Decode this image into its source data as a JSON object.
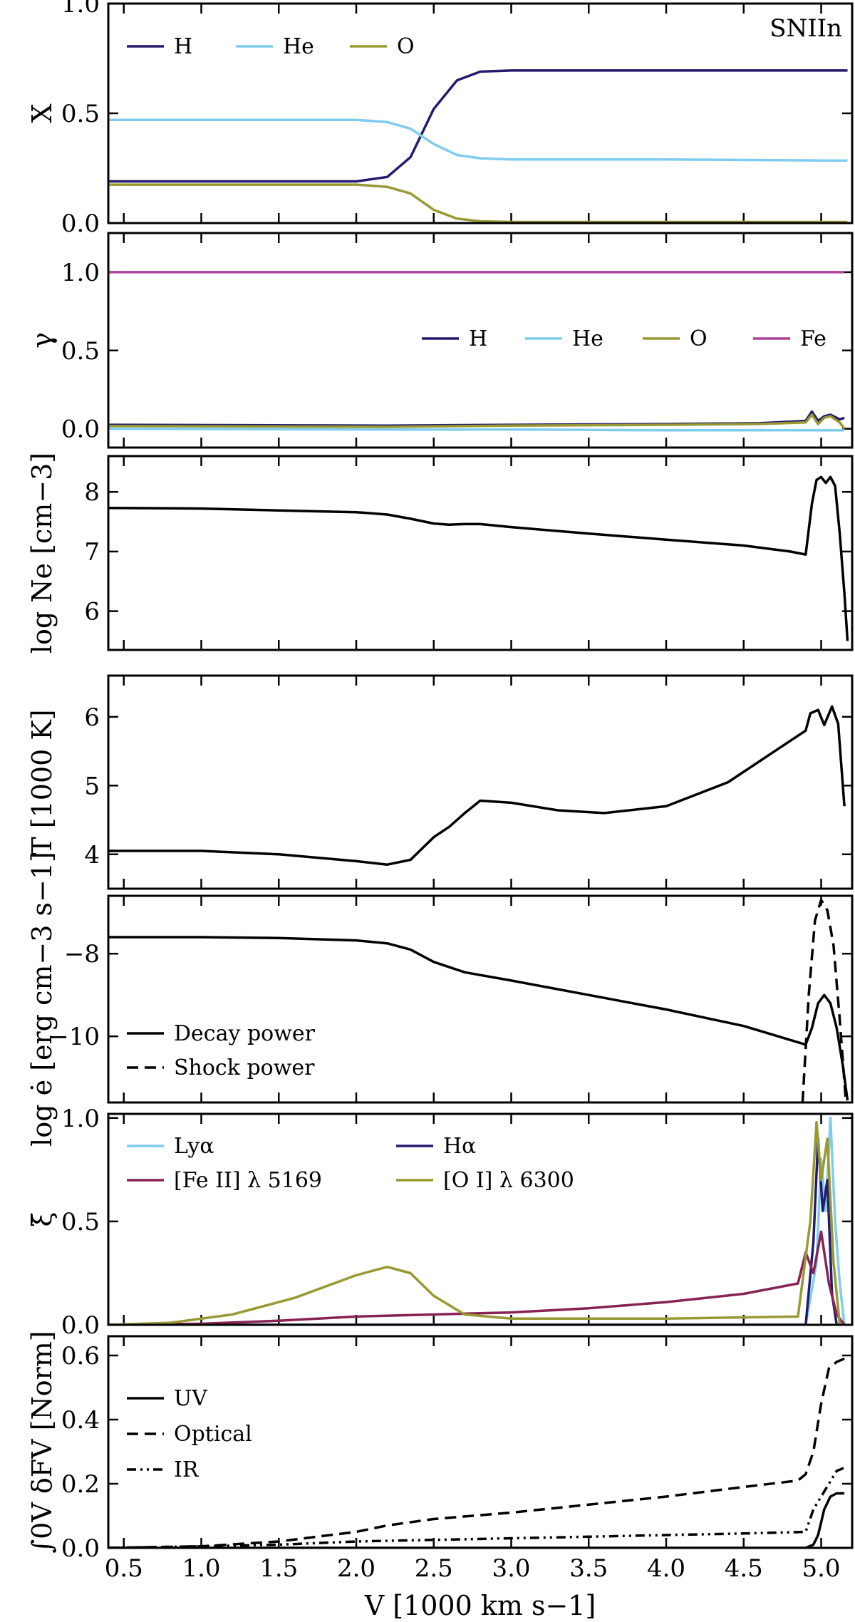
{
  "colors": {
    "H": "#231c6e",
    "He": "#80ccee",
    "O": "#999933",
    "Fe": "#aa4499",
    "FeII": "#882255",
    "black": "#000000"
  },
  "chart_data": [
    {
      "type": "line",
      "ylabel": "X",
      "annotation": "SNIIn",
      "xlim": [
        0.4,
        5.2
      ],
      "ylim": [
        0,
        1
      ],
      "yticks": [
        "0.0",
        "0.5",
        "1.0"
      ],
      "legend": "top-left",
      "series": [
        {
          "name": "H",
          "color": "H",
          "dash": "solid",
          "x": [
            0.4,
            1.0,
            1.5,
            2.0,
            2.2,
            2.35,
            2.5,
            2.65,
            2.8,
            3.0,
            4.0,
            5.0,
            5.17
          ],
          "y": [
            0.19,
            0.19,
            0.19,
            0.19,
            0.21,
            0.3,
            0.52,
            0.65,
            0.69,
            0.695,
            0.695,
            0.695,
            0.695
          ]
        },
        {
          "name": "He",
          "color": "He",
          "dash": "solid",
          "x": [
            0.4,
            1.0,
            1.5,
            2.0,
            2.2,
            2.35,
            2.5,
            2.65,
            2.8,
            3.0,
            4.0,
            5.0,
            5.17
          ],
          "y": [
            0.47,
            0.47,
            0.47,
            0.47,
            0.46,
            0.43,
            0.36,
            0.31,
            0.295,
            0.29,
            0.29,
            0.285,
            0.285
          ]
        },
        {
          "name": "O",
          "color": "O",
          "dash": "solid",
          "x": [
            0.4,
            1.0,
            1.5,
            2.0,
            2.2,
            2.35,
            2.5,
            2.65,
            2.8,
            3.0,
            4.0,
            5.0,
            5.17
          ],
          "y": [
            0.175,
            0.175,
            0.175,
            0.175,
            0.165,
            0.135,
            0.06,
            0.02,
            0.008,
            0.005,
            0.005,
            0.005,
            0.005
          ]
        }
      ]
    },
    {
      "type": "line",
      "ylabel": "γ",
      "xlim": [
        0.4,
        5.2
      ],
      "ylim": [
        -0.12,
        1.25
      ],
      "yticks": [
        "0.0",
        "0.5",
        "1.0"
      ],
      "legend": "center-right",
      "series": [
        {
          "name": "H",
          "color": "H",
          "dash": "solid",
          "x": [
            0.4,
            2.2,
            3.0,
            4.0,
            4.6,
            4.9,
            4.94,
            4.98,
            5.02,
            5.06,
            5.12,
            5.15
          ],
          "y": [
            0.025,
            0.02,
            0.025,
            0.03,
            0.035,
            0.05,
            0.11,
            0.05,
            0.08,
            0.09,
            0.06,
            0.07
          ]
        },
        {
          "name": "He",
          "color": "He",
          "dash": "solid",
          "x": [
            0.4,
            2.2,
            3.0,
            4.0,
            5.0,
            5.15
          ],
          "y": [
            0.0,
            -0.005,
            -0.005,
            -0.01,
            -0.01,
            -0.01
          ]
        },
        {
          "name": "O",
          "color": "O",
          "dash": "solid",
          "x": [
            0.4,
            2.2,
            3.0,
            4.0,
            4.6,
            4.9,
            4.94,
            4.98,
            5.02,
            5.06,
            5.12,
            5.15
          ],
          "y": [
            0.018,
            0.012,
            0.02,
            0.025,
            0.03,
            0.04,
            0.09,
            0.03,
            0.07,
            0.08,
            0.04,
            0.0
          ]
        },
        {
          "name": "Fe",
          "color": "Fe",
          "dash": "solid",
          "x": [
            0.4,
            2.0,
            4.0,
            5.15
          ],
          "y": [
            1.0,
            1.0,
            1.0,
            1.0
          ]
        }
      ]
    },
    {
      "type": "line",
      "ylabel": "log Ne [cm−3]",
      "xlim": [
        0.4,
        5.2
      ],
      "ylim": [
        5.35,
        8.6
      ],
      "yticks": [
        "6",
        "7",
        "8"
      ],
      "series": [
        {
          "name": "",
          "color": "black",
          "dash": "solid",
          "x": [
            0.4,
            1.0,
            1.5,
            2.0,
            2.2,
            2.35,
            2.5,
            2.6,
            2.7,
            2.8,
            3.0,
            3.5,
            4.0,
            4.5,
            4.8,
            4.9,
            4.94,
            4.97,
            5.0,
            5.03,
            5.06,
            5.09,
            5.12,
            5.15,
            5.17
          ],
          "y": [
            7.73,
            7.72,
            7.69,
            7.66,
            7.62,
            7.55,
            7.47,
            7.45,
            7.46,
            7.46,
            7.41,
            7.3,
            7.2,
            7.1,
            7.0,
            6.95,
            7.8,
            8.2,
            8.25,
            8.15,
            8.25,
            8.1,
            7.3,
            6.3,
            5.5
          ]
        }
      ]
    },
    {
      "type": "line",
      "ylabel": "T [1000 K]",
      "xlim": [
        0.4,
        5.2
      ],
      "ylim": [
        3.5,
        6.6
      ],
      "yticks": [
        "4",
        "5",
        "6"
      ],
      "series": [
        {
          "name": "",
          "color": "black",
          "dash": "solid",
          "x": [
            0.4,
            1.0,
            1.5,
            2.0,
            2.2,
            2.35,
            2.5,
            2.6,
            2.7,
            2.8,
            3.0,
            3.3,
            3.6,
            4.0,
            4.4,
            4.7,
            4.9,
            4.93,
            4.98,
            5.02,
            5.07,
            5.11,
            5.15
          ],
          "y": [
            4.05,
            4.05,
            4.0,
            3.9,
            3.85,
            3.92,
            4.25,
            4.4,
            4.6,
            4.78,
            4.75,
            4.64,
            4.6,
            4.7,
            5.05,
            5.5,
            5.8,
            6.05,
            6.1,
            5.88,
            6.15,
            5.9,
            4.7
          ]
        }
      ]
    },
    {
      "type": "line",
      "ylabel": "log ė [erg cm−3 s−1]",
      "xlim": [
        0.4,
        5.2
      ],
      "ylim": [
        -11.6,
        -6.6
      ],
      "yticks": [
        "−10",
        "−8"
      ],
      "legend": "lower-left",
      "series": [
        {
          "name": "Decay power",
          "color": "black",
          "dash": "solid",
          "x": [
            0.4,
            1.0,
            1.5,
            2.0,
            2.2,
            2.35,
            2.5,
            2.7,
            3.0,
            3.5,
            4.0,
            4.5,
            4.9,
            4.94,
            4.98,
            5.02,
            5.06,
            5.1,
            5.14,
            5.17
          ],
          "y": [
            -7.6,
            -7.6,
            -7.62,
            -7.68,
            -7.75,
            -7.9,
            -8.2,
            -8.45,
            -8.65,
            -9.0,
            -9.35,
            -9.75,
            -10.2,
            -9.8,
            -9.2,
            -9.0,
            -9.2,
            -9.8,
            -10.7,
            -11.55
          ]
        },
        {
          "name": "Shock power",
          "color": "black",
          "dash": "dashed",
          "x": [
            4.88,
            4.92,
            4.96,
            5.0,
            5.04,
            5.08,
            5.12,
            5.16
          ],
          "y": [
            -11.6,
            -9.0,
            -7.2,
            -6.7,
            -6.95,
            -7.8,
            -9.6,
            -11.6
          ]
        }
      ]
    },
    {
      "type": "line",
      "ylabel": "ξ̄",
      "xlim": [
        0.4,
        5.2
      ],
      "ylim": [
        0,
        1.02
      ],
      "yticks": [
        "0.0",
        "0.5",
        "1.0"
      ],
      "legend": "top-left",
      "series": [
        {
          "name": "Lyα",
          "color": "He",
          "dash": "solid",
          "x": [
            0.4,
            4.9,
            4.97,
            5.0,
            5.03,
            5.06,
            5.09,
            5.12,
            5.15
          ],
          "y": [
            0.0,
            0.0,
            0.3,
            0.8,
            0.55,
            1.0,
            0.5,
            0.2,
            0.0
          ]
        },
        {
          "name": "Hα",
          "color": "H",
          "dash": "solid",
          "x": [
            0.4,
            4.9,
            4.95,
            4.98,
            5.01,
            5.04,
            5.07,
            5.1,
            5.13
          ],
          "y": [
            0.0,
            0.0,
            0.4,
            0.9,
            0.55,
            0.7,
            0.15,
            0.0,
            0.0
          ]
        },
        {
          "name": "[Fe II] λ 5169",
          "color": "FeII",
          "dash": "solid",
          "x": [
            0.4,
            1.0,
            1.5,
            2.0,
            2.5,
            3.0,
            3.5,
            4.0,
            4.5,
            4.85,
            4.9,
            4.95,
            5.0,
            5.05,
            5.1,
            5.15
          ],
          "y": [
            0.0,
            0.005,
            0.02,
            0.04,
            0.05,
            0.06,
            0.08,
            0.11,
            0.15,
            0.2,
            0.35,
            0.25,
            0.45,
            0.2,
            0.05,
            0.0
          ]
        },
        {
          "name": "[O I] λ 6300",
          "color": "O",
          "dash": "solid",
          "x": [
            0.4,
            0.8,
            1.2,
            1.6,
            2.0,
            2.2,
            2.35,
            2.5,
            2.7,
            3.0,
            3.5,
            4.0,
            4.85,
            4.93,
            4.97,
            5.0,
            5.04,
            5.08,
            5.12
          ],
          "y": [
            0.0,
            0.01,
            0.05,
            0.13,
            0.24,
            0.28,
            0.25,
            0.14,
            0.05,
            0.03,
            0.03,
            0.03,
            0.04,
            0.5,
            0.98,
            0.7,
            0.9,
            0.3,
            0.0
          ]
        }
      ]
    },
    {
      "type": "line",
      "ylabel": "∫0V δFV [Norm]",
      "xlabel": "V [1000 km s−1]",
      "xlim": [
        0.4,
        5.2
      ],
      "ylim": [
        0,
        0.66
      ],
      "yticks": [
        "0.0",
        "0.2",
        "0.4",
        "0.6"
      ],
      "xticks": [
        "0.5",
        "1.0",
        "1.5",
        "2.0",
        "2.5",
        "3.0",
        "3.5",
        "4.0",
        "4.5",
        "5.0"
      ],
      "legend": "center-left",
      "series": [
        {
          "name": "UV",
          "color": "black",
          "dash": "solid",
          "x": [
            0.4,
            4.9,
            4.95,
            4.98,
            5.02,
            5.06,
            5.1,
            5.15
          ],
          "y": [
            0.0,
            0.0,
            0.01,
            0.04,
            0.12,
            0.16,
            0.17,
            0.17
          ]
        },
        {
          "name": "Optical",
          "color": "black",
          "dash": "dashed",
          "x": [
            0.4,
            1.0,
            1.5,
            2.0,
            2.2,
            2.5,
            3.0,
            3.5,
            4.0,
            4.5,
            4.85,
            4.9,
            4.95,
            5.0,
            5.05,
            5.1,
            5.15
          ],
          "y": [
            0.0,
            0.005,
            0.02,
            0.05,
            0.07,
            0.09,
            0.11,
            0.135,
            0.16,
            0.19,
            0.21,
            0.23,
            0.3,
            0.45,
            0.56,
            0.58,
            0.59
          ]
        },
        {
          "name": "IR",
          "color": "black",
          "dash": "dashdotdot",
          "x": [
            0.4,
            1.0,
            1.5,
            2.0,
            2.5,
            3.0,
            3.5,
            4.0,
            4.5,
            4.9,
            4.95,
            5.0,
            5.05,
            5.1,
            5.15
          ],
          "y": [
            0.0,
            0.005,
            0.01,
            0.02,
            0.025,
            0.03,
            0.035,
            0.04,
            0.045,
            0.05,
            0.12,
            0.16,
            0.2,
            0.24,
            0.25
          ]
        }
      ]
    }
  ]
}
